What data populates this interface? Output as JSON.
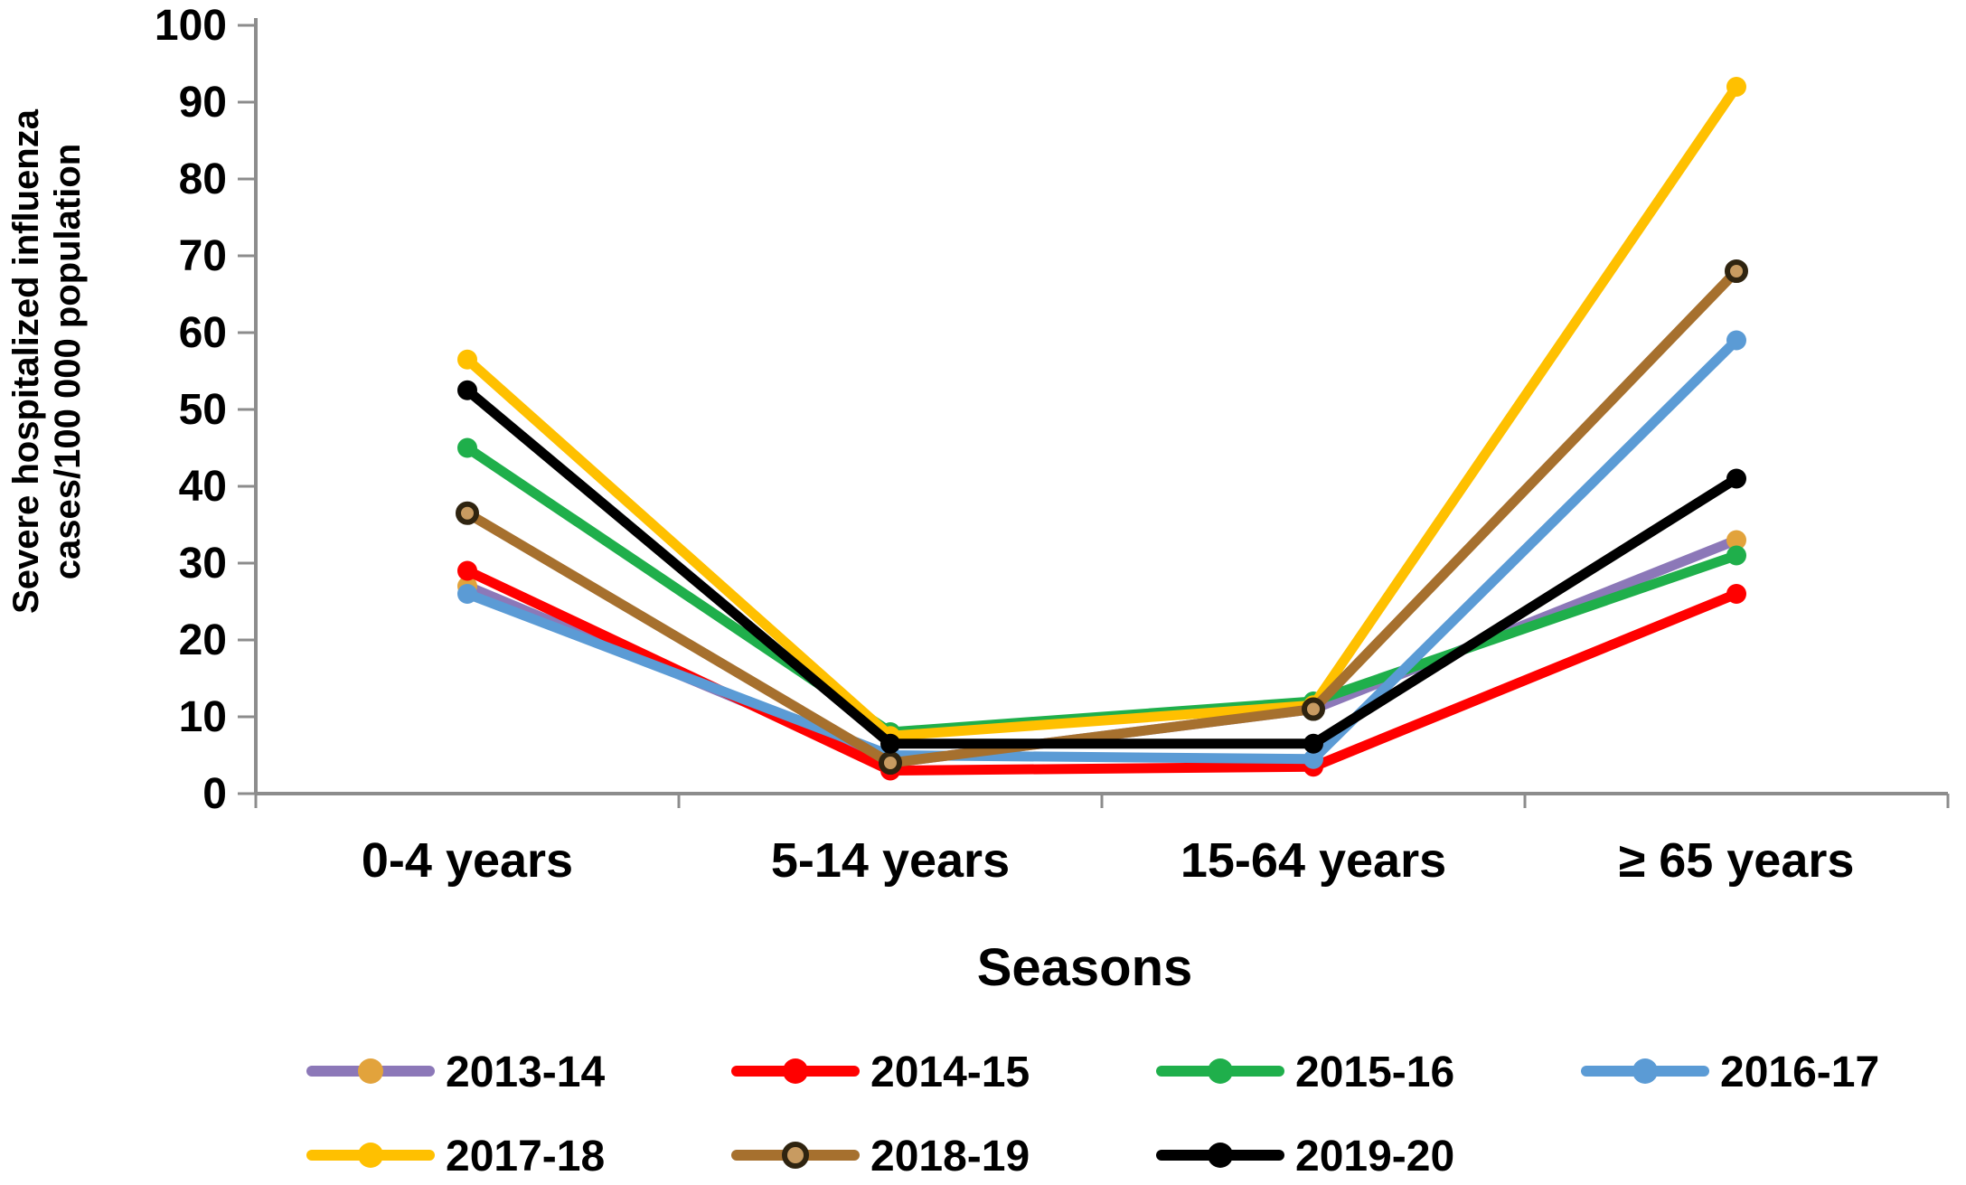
{
  "chart_data": {
    "type": "line",
    "xlabel": "Seasons",
    "ylabel_lines": [
      "Severe hospitalized influenza",
      "cases/100 000 population"
    ],
    "categories": [
      "0-4 years",
      "5-14 years",
      "15-64 years",
      "≥ 65 years"
    ],
    "y_ticks": [
      0,
      10,
      20,
      30,
      40,
      50,
      60,
      70,
      80,
      90,
      100
    ],
    "ylim": [
      0,
      100
    ],
    "grid": "off",
    "legend_position": "bottom",
    "axis_color": "#8c8c8c",
    "text_color": "#000000",
    "series": [
      {
        "name": "2013-14",
        "line_color": "#8C78B8",
        "marker_color": "#E2A33C",
        "marker_style": "filled",
        "values": [
          27,
          4,
          11,
          33
        ]
      },
      {
        "name": "2014-15",
        "line_color": "#FF0000",
        "marker_color": "#FF0000",
        "marker_style": "filled",
        "values": [
          29,
          3,
          3.5,
          26
        ]
      },
      {
        "name": "2015-16",
        "line_color": "#1FAF4B",
        "marker_color": "#1FAF4B",
        "marker_style": "filled",
        "values": [
          45,
          8,
          12,
          31
        ]
      },
      {
        "name": "2016-17",
        "line_color": "#5B9BD5",
        "marker_color": "#5B9BD5",
        "marker_style": "filled",
        "values": [
          26,
          5,
          4.5,
          59
        ]
      },
      {
        "name": "2017-18",
        "line_color": "#FFC000",
        "marker_color": "#FFC000",
        "marker_style": "filled",
        "values": [
          56.5,
          7.5,
          11.5,
          92
        ]
      },
      {
        "name": "2018-19",
        "line_color": "#A6702E",
        "marker_color": "#C89B61",
        "marker_ring": "#2F2410",
        "marker_style": "open",
        "values": [
          36.5,
          4,
          11,
          68
        ]
      },
      {
        "name": "2019-20",
        "line_color": "#000000",
        "marker_color": "#000000",
        "marker_style": "filled",
        "values": [
          52.5,
          6.5,
          6.5,
          41
        ]
      }
    ]
  }
}
